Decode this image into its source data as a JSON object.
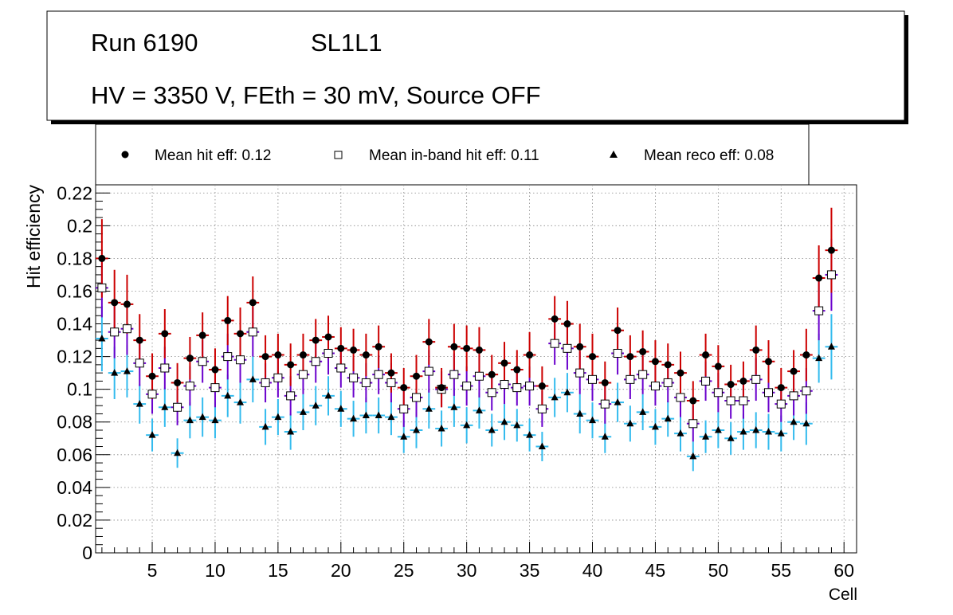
{
  "header": {
    "run": "Run 6190",
    "layer": "SL1L1",
    "conditions": "HV = 3350 V, FEth = 30 mV, Source OFF"
  },
  "legend": {
    "hit": "Mean hit  eff: 0.12",
    "inband": "Mean in-band hit eff: 0.11",
    "reco": "Mean reco eff: 0.08"
  },
  "colors": {
    "hit_err": "#cc0000",
    "inband_err": "#6a00cc",
    "reco_err": "#33bbee",
    "grid": "#888888"
  },
  "chart_data": {
    "type": "scatter",
    "xlabel": "Cell",
    "ylabel": "Hit efficiency",
    "xlim": [
      0.5,
      61.0
    ],
    "ylim": [
      0,
      0.225
    ],
    "x_ticks": [
      5,
      10,
      15,
      20,
      25,
      30,
      35,
      40,
      45,
      50,
      55,
      60
    ],
    "x_tick_labels": [
      "5",
      "10",
      "15",
      "20",
      "25",
      "30",
      "35",
      "40",
      "45",
      "50",
      "55",
      "60"
    ],
    "y_ticks": [
      0,
      0.02,
      0.04,
      0.06,
      0.08,
      0.1,
      0.12,
      0.14,
      0.16,
      0.18,
      0.2,
      0.22
    ],
    "y_tick_labels": [
      "0",
      "0.02",
      "0.04",
      "0.06",
      "0.08",
      "0.1",
      "0.12",
      "0.14",
      "0.16",
      "0.18",
      "0.2",
      "0.22"
    ],
    "grid": true,
    "legend_position": "top",
    "series": [
      {
        "name": "Mean hit eff",
        "marker": "filled-circle",
        "values": [
          0.18,
          0.153,
          0.152,
          0.13,
          0.108,
          0.134,
          0.104,
          0.119,
          0.133,
          0.112,
          0.142,
          0.134,
          0.153,
          0.12,
          0.121,
          0.115,
          0.121,
          0.13,
          0.132,
          0.125,
          0.124,
          0.121,
          0.126,
          0.11,
          0.101,
          0.108,
          0.129,
          0.101,
          0.126,
          0.125,
          0.124,
          0.109,
          0.116,
          0.112,
          0.121,
          0.102,
          0.143,
          0.14,
          0.126,
          0.12,
          0.104,
          0.136,
          0.12,
          0.123,
          0.117,
          0.115,
          0.11,
          0.093,
          0.121,
          0.114,
          0.103,
          0.105,
          0.124,
          0.117,
          0.101,
          0.111,
          0.121,
          0.168,
          0.185
        ],
        "err": [
          0.024,
          0.02,
          0.018,
          0.016,
          0.014,
          0.015,
          0.012,
          0.013,
          0.014,
          0.013,
          0.015,
          0.016,
          0.016,
          0.013,
          0.013,
          0.013,
          0.013,
          0.013,
          0.013,
          0.013,
          0.013,
          0.013,
          0.013,
          0.012,
          0.012,
          0.013,
          0.014,
          0.012,
          0.014,
          0.014,
          0.014,
          0.012,
          0.013,
          0.012,
          0.014,
          0.012,
          0.014,
          0.014,
          0.014,
          0.014,
          0.013,
          0.014,
          0.013,
          0.013,
          0.013,
          0.013,
          0.013,
          0.012,
          0.013,
          0.013,
          0.012,
          0.012,
          0.015,
          0.013,
          0.012,
          0.013,
          0.016,
          0.02,
          0.026
        ]
      },
      {
        "name": "Mean in-band hit eff",
        "marker": "open-square",
        "values": [
          0.162,
          0.135,
          0.137,
          0.116,
          0.097,
          0.113,
          0.089,
          0.102,
          0.117,
          0.101,
          0.12,
          0.118,
          0.135,
          0.104,
          0.107,
          0.096,
          0.109,
          0.117,
          0.122,
          0.113,
          0.107,
          0.104,
          0.109,
          0.104,
          0.088,
          0.095,
          0.111,
          0.1,
          0.109,
          0.102,
          0.108,
          0.098,
          0.103,
          0.101,
          0.102,
          0.088,
          0.128,
          0.125,
          0.11,
          0.106,
          0.091,
          0.122,
          0.106,
          0.109,
          0.102,
          0.104,
          0.095,
          0.079,
          0.105,
          0.098,
          0.093,
          0.093,
          0.106,
          0.098,
          0.091,
          0.096,
          0.099,
          0.148,
          0.17
        ],
        "err": [
          0.018,
          0.016,
          0.016,
          0.014,
          0.012,
          0.013,
          0.011,
          0.012,
          0.013,
          0.012,
          0.014,
          0.014,
          0.015,
          0.012,
          0.012,
          0.012,
          0.012,
          0.013,
          0.013,
          0.012,
          0.012,
          0.012,
          0.012,
          0.012,
          0.011,
          0.012,
          0.013,
          0.011,
          0.013,
          0.012,
          0.013,
          0.011,
          0.012,
          0.011,
          0.012,
          0.011,
          0.013,
          0.013,
          0.013,
          0.013,
          0.012,
          0.013,
          0.012,
          0.012,
          0.012,
          0.012,
          0.012,
          0.011,
          0.012,
          0.012,
          0.011,
          0.011,
          0.013,
          0.012,
          0.011,
          0.012,
          0.014,
          0.018,
          0.022
        ]
      },
      {
        "name": "Mean reco eff",
        "marker": "filled-triangle",
        "values": [
          0.131,
          0.11,
          0.111,
          0.091,
          0.072,
          0.089,
          0.061,
          0.081,
          0.083,
          0.081,
          0.096,
          0.092,
          0.106,
          0.077,
          0.083,
          0.074,
          0.086,
          0.09,
          0.096,
          0.088,
          0.082,
          0.084,
          0.084,
          0.083,
          0.071,
          0.075,
          0.088,
          0.076,
          0.089,
          0.078,
          0.087,
          0.075,
          0.08,
          0.078,
          0.072,
          0.065,
          0.095,
          0.098,
          0.085,
          0.081,
          0.071,
          0.092,
          0.079,
          0.086,
          0.077,
          0.082,
          0.073,
          0.059,
          0.071,
          0.075,
          0.07,
          0.074,
          0.075,
          0.074,
          0.073,
          0.08,
          0.079,
          0.119,
          0.126
        ],
        "err": [
          0.02,
          0.016,
          0.016,
          0.012,
          0.01,
          0.012,
          0.009,
          0.011,
          0.012,
          0.011,
          0.013,
          0.013,
          0.014,
          0.011,
          0.011,
          0.011,
          0.011,
          0.012,
          0.012,
          0.011,
          0.011,
          0.011,
          0.011,
          0.011,
          0.01,
          0.011,
          0.012,
          0.011,
          0.012,
          0.011,
          0.011,
          0.01,
          0.011,
          0.01,
          0.01,
          0.009,
          0.012,
          0.012,
          0.012,
          0.011,
          0.01,
          0.012,
          0.011,
          0.011,
          0.011,
          0.011,
          0.011,
          0.009,
          0.01,
          0.011,
          0.01,
          0.011,
          0.011,
          0.011,
          0.011,
          0.011,
          0.013,
          0.015,
          0.02
        ]
      }
    ]
  }
}
